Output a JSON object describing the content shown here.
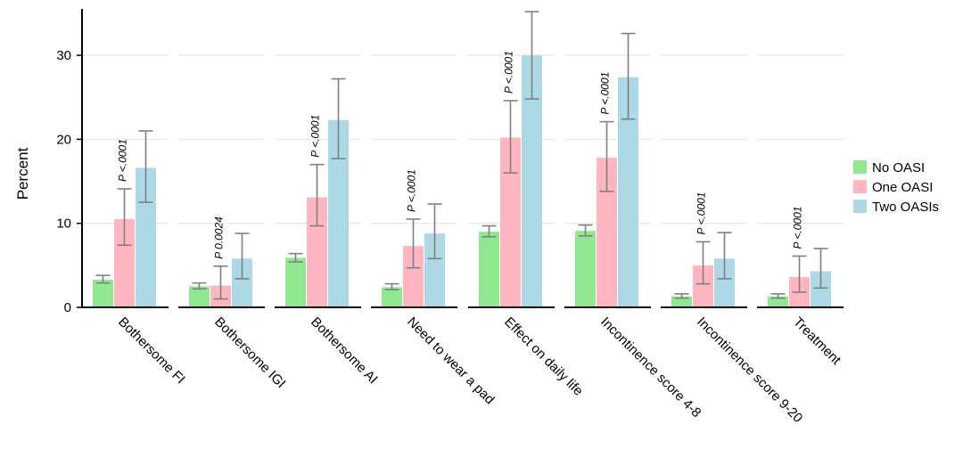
{
  "chart_data": {
    "type": "bar",
    "ylabel": "Percent",
    "ylim": [
      0,
      35
    ],
    "yticks": [
      0,
      10,
      20,
      30
    ],
    "grid": true,
    "legend_position": "right",
    "categories": [
      "Bothersome FI",
      "Bothersome IGI",
      "Bothersome AI",
      "Need to wear a pad",
      "Effect on daily life",
      "Incontinence score 4-8",
      "Incontinence score 9-20",
      "Treatment"
    ],
    "series": [
      {
        "name": "No OASI",
        "color": "#90e890",
        "values": [
          3.3,
          2.5,
          5.9,
          2.4,
          9.0,
          9.1,
          1.3,
          1.3
        ],
        "ci_low": [
          2.9,
          2.2,
          5.4,
          2.1,
          8.4,
          8.5,
          1.1,
          1.1
        ],
        "ci_high": [
          3.8,
          2.9,
          6.4,
          2.8,
          9.7,
          9.8,
          1.6,
          1.6
        ]
      },
      {
        "name": "One OASI",
        "color": "#ffb6c1",
        "values": [
          10.5,
          2.6,
          13.1,
          7.3,
          20.2,
          17.8,
          5.0,
          3.6
        ],
        "ci_low": [
          7.4,
          1.0,
          9.7,
          4.7,
          16.0,
          13.8,
          2.8,
          1.8
        ],
        "ci_high": [
          14.1,
          4.9,
          17.0,
          10.5,
          24.6,
          22.1,
          7.8,
          6.1
        ]
      },
      {
        "name": "Two OASIs",
        "color": "#add8e6",
        "values": [
          16.6,
          5.8,
          22.3,
          8.8,
          30.0,
          27.4,
          5.8,
          4.3
        ],
        "ci_low": [
          12.5,
          3.4,
          17.7,
          5.8,
          24.8,
          22.4,
          3.4,
          2.3
        ],
        "ci_high": [
          21.0,
          8.8,
          27.2,
          12.3,
          35.2,
          32.6,
          8.9,
          7.0
        ]
      }
    ],
    "annotations": [
      "P <.0001",
      "P 0.0024",
      "P <.0001",
      "P <.0001",
      "P <.0001",
      "P <.0001",
      "P <.0001",
      "P <.0001"
    ]
  }
}
